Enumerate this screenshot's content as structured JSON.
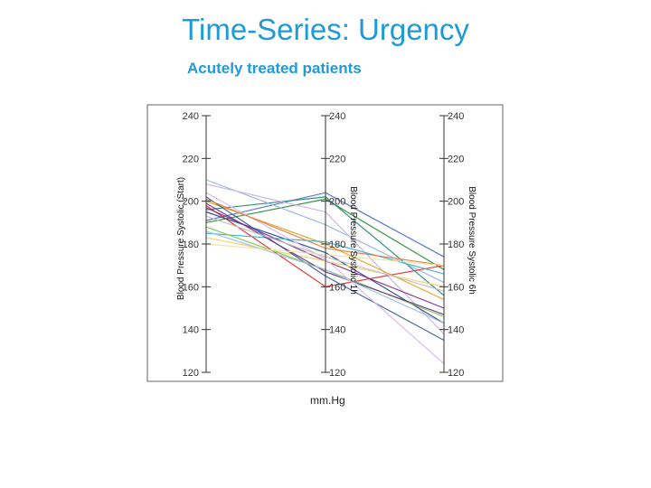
{
  "slide": {
    "title": "Time-Series: Urgency",
    "subtitle": "Acutely treated patients",
    "unit_label": "mm.Hg"
  },
  "chart_data": {
    "type": "line",
    "subtype": "parallel-coordinates",
    "axes": [
      {
        "name": "Blood Pressure Systolic (Start)",
        "ticks": [
          120,
          140,
          160,
          180,
          200,
          220,
          240
        ],
        "range": [
          120,
          240
        ]
      },
      {
        "name": "Blood Pressure Systolic 1h",
        "ticks": [
          120,
          140,
          160,
          180,
          200,
          220,
          240
        ],
        "range": [
          120,
          240
        ]
      },
      {
        "name": "Blood Pressure Systolic 6h",
        "ticks": [
          120,
          140,
          160,
          180,
          200,
          220,
          240
        ],
        "range": [
          120,
          240
        ]
      }
    ],
    "series": [
      {
        "values": [
          191,
          204,
          174
        ],
        "color": "#4f6fd0"
      },
      {
        "values": [
          190,
          201,
          168
        ],
        "color": "#2e8b3a"
      },
      {
        "values": [
          196,
          202,
          156
        ],
        "color": "#2a8a7a"
      },
      {
        "values": [
          210,
          189,
          162
        ],
        "color": "#9bb5e6"
      },
      {
        "values": [
          208,
          195,
          138
        ],
        "color": "#c9b3e8"
      },
      {
        "values": [
          200,
          180,
          154
        ],
        "color": "#e8a020"
      },
      {
        "values": [
          198,
          160,
          170
        ],
        "color": "#e03030"
      },
      {
        "values": [
          195,
          176,
          143
        ],
        "color": "#2a4c8c"
      },
      {
        "values": [
          197,
          172,
          150
        ],
        "color": "#8a2a8a"
      },
      {
        "values": [
          185,
          181,
          166
        ],
        "color": "#3fb0c8"
      },
      {
        "values": [
          183,
          172,
          160
        ],
        "color": "#f0d070"
      },
      {
        "values": [
          202,
          165,
          135
        ],
        "color": "#4060a0"
      },
      {
        "values": [
          188,
          168,
          146
        ],
        "color": "#7ec850"
      },
      {
        "values": [
          199,
          167,
          147
        ],
        "color": "#6a3a8a"
      },
      {
        "values": [
          186,
          168,
          143
        ],
        "color": "#a0c0e0"
      },
      {
        "values": [
          204,
          173,
          124
        ],
        "color": "#d8b8f0"
      },
      {
        "values": [
          193,
          174,
          158
        ],
        "color": "#c0c0c0"
      },
      {
        "values": [
          201,
          178,
          170
        ],
        "color": "#e08040"
      },
      {
        "values": [
          180,
          175,
          170
        ],
        "color": "#f0e0a0"
      }
    ]
  }
}
